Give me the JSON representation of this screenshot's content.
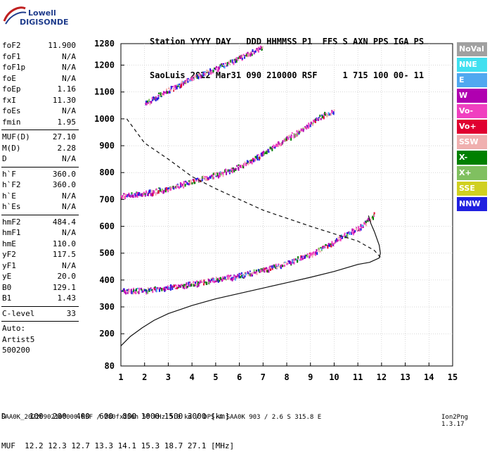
{
  "logo": {
    "line1": "Lowell",
    "line2": "DIGISONDE"
  },
  "header": {
    "row1": "Station YYYY DAY   DDD HHMMSS P1  FFS S AXN PPS IGA PS",
    "row2": "SaoLuis 2022 Mar31 090 210000 RSF     1 715 100 00- 11"
  },
  "params": [
    {
      "k": "foF2",
      "v": "11.900"
    },
    {
      "k": "foF1",
      "v": "N/A"
    },
    {
      "k": "foF1p",
      "v": "N/A"
    },
    {
      "k": "foE",
      "v": "N/A"
    },
    {
      "k": "foEp",
      "v": "1.16"
    },
    {
      "k": "fxI",
      "v": "11.30"
    },
    {
      "k": "foEs",
      "v": "N/A"
    },
    {
      "k": "fmin",
      "v": "1.95"
    },
    {
      "sep": true
    },
    {
      "k": "MUF(D)",
      "v": "27.10"
    },
    {
      "k": "M(D)",
      "v": "2.28"
    },
    {
      "k": "D",
      "v": "N/A"
    },
    {
      "sep": true
    },
    {
      "k": "h`F",
      "v": "360.0"
    },
    {
      "k": "h`F2",
      "v": "360.0"
    },
    {
      "k": "h`E",
      "v": "N/A"
    },
    {
      "k": "h`Es",
      "v": "N/A"
    },
    {
      "sep": true
    },
    {
      "k": "hmF2",
      "v": "484.4"
    },
    {
      "k": "hmF1",
      "v": "N/A"
    },
    {
      "k": "hmE",
      "v": "110.0"
    },
    {
      "k": "yF2",
      "v": "117.5"
    },
    {
      "k": "yF1",
      "v": "N/A"
    },
    {
      "k": "yE",
      "v": "20.0"
    },
    {
      "k": "B0",
      "v": "129.1"
    },
    {
      "k": "B1",
      "v": "1.43"
    },
    {
      "sep": true
    },
    {
      "k": "C-level",
      "v": "33"
    },
    {
      "sep": true
    },
    {
      "k": "Auto:",
      "v": ""
    },
    {
      "k": "Artist5",
      "v": ""
    },
    {
      "k": "500200",
      "v": ""
    }
  ],
  "legend": [
    {
      "label": "NoVal",
      "color": "#a0a0a0"
    },
    {
      "label": "NNE",
      "color": "#40e0f0"
    },
    {
      "label": "E",
      "color": "#50a8f0"
    },
    {
      "label": "W",
      "color": "#b000b0"
    },
    {
      "label": "Vo-",
      "color": "#f040c0"
    },
    {
      "label": "Vo+",
      "color": "#e00030"
    },
    {
      "label": "SSW",
      "color": "#f0b0b0"
    },
    {
      "label": "X-",
      "color": "#008000"
    },
    {
      "label": "X+",
      "color": "#80c060"
    },
    {
      "label": "SSE",
      "color": "#d0d020"
    },
    {
      "label": "NNW",
      "color": "#2020e0"
    }
  ],
  "bottom": {
    "line1": "D     100  200  400  600  800 1000 1500 3000 [km]",
    "line2": "MUF  12.2 12.3 12.7 13.3 14.1 15.3 18.7 27.1 [MHz]"
  },
  "footer": "SAA0K_20220902100000.RSF / 280fx256h 50 kHz 5.0 km / DPS-4 SAA0K 903 / 2.6 S 315.8 E",
  "ion_version": "Ion2Png 1.3.17",
  "chart_data": {
    "type": "scatter",
    "xlim": [
      1,
      15
    ],
    "ylim": [
      80,
      1280
    ],
    "xticks": [
      "1",
      "2",
      "3",
      "4",
      "5",
      "6",
      "7",
      "8",
      "9",
      "10",
      "11",
      "12",
      "13",
      "14",
      "15"
    ],
    "yticks": [
      "80",
      "200",
      "300",
      "400",
      "500",
      "600",
      "700",
      "800",
      "900",
      "1000",
      "1100",
      "1200",
      "1280"
    ],
    "series": [
      {
        "color": "#101010",
        "dash": "",
        "values": [
          [
            1.0,
            155
          ],
          [
            1.4,
            190
          ],
          [
            1.9,
            222
          ],
          [
            2.4,
            250
          ],
          [
            3.0,
            275
          ],
          [
            4.0,
            305
          ],
          [
            5.0,
            330
          ],
          [
            6.0,
            350
          ],
          [
            7.0,
            370
          ],
          [
            8.0,
            390
          ],
          [
            9.0,
            410
          ],
          [
            10.0,
            432
          ],
          [
            11.0,
            458
          ],
          [
            11.5,
            466
          ],
          [
            11.9,
            482
          ],
          [
            11.95,
            500
          ],
          [
            11.9,
            530
          ],
          [
            11.7,
            580
          ],
          [
            11.55,
            610
          ],
          [
            11.45,
            640
          ]
        ]
      },
      {
        "color": "#101010",
        "dash": "5,4",
        "values": [
          [
            1.25,
            1000
          ],
          [
            2.0,
            910
          ],
          [
            3.0,
            850
          ],
          [
            4.0,
            785
          ],
          [
            5.0,
            740
          ],
          [
            6.0,
            700
          ],
          [
            7.0,
            660
          ],
          [
            8.0,
            630
          ],
          [
            9.0,
            600
          ],
          [
            10.0,
            572
          ],
          [
            11.0,
            545
          ],
          [
            11.7,
            510
          ],
          [
            11.95,
            485
          ]
        ]
      }
    ],
    "traces": [
      {
        "name": "O1",
        "pts": [
          [
            1.0,
            362
          ],
          [
            2.0,
            365
          ],
          [
            3.0,
            375
          ],
          [
            4.0,
            388
          ],
          [
            5.0,
            405
          ],
          [
            6.0,
            420
          ],
          [
            7.0,
            440
          ],
          [
            8.0,
            466
          ],
          [
            9.0,
            498
          ],
          [
            10.0,
            545
          ],
          [
            10.5,
            575
          ],
          [
            11.0,
            595
          ],
          [
            11.5,
            630
          ],
          [
            11.7,
            650
          ]
        ]
      },
      {
        "name": "O2",
        "pts": [
          [
            1.0,
            715
          ],
          [
            2.0,
            725
          ],
          [
            3.0,
            745
          ],
          [
            4.0,
            770
          ],
          [
            5.0,
            795
          ],
          [
            6.0,
            825
          ],
          [
            7.0,
            875
          ],
          [
            8.0,
            930
          ],
          [
            9.0,
            985
          ],
          [
            9.5,
            1015
          ],
          [
            10.0,
            1035
          ]
        ]
      },
      {
        "name": "O3",
        "pts": [
          [
            2.0,
            1060
          ],
          [
            3.0,
            1110
          ],
          [
            4.0,
            1155
          ],
          [
            5.0,
            1190
          ],
          [
            6.0,
            1230
          ],
          [
            7.0,
            1270
          ]
        ]
      }
    ]
  }
}
